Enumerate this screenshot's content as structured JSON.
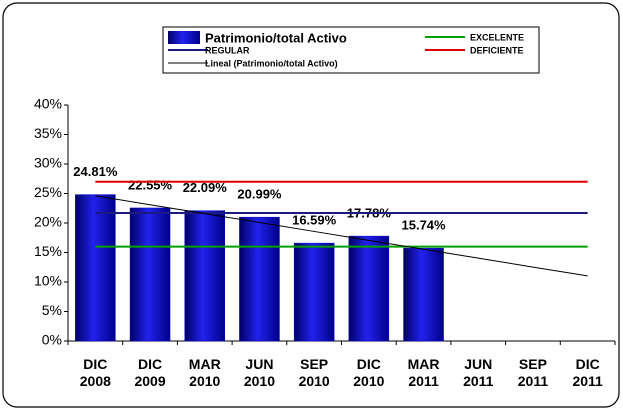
{
  "chart_data": {
    "type": "bar",
    "categories": [
      "DIC 2008",
      "DIC 2009",
      "MAR 2010",
      "JUN 2010",
      "SEP 2010",
      "DIC 2010",
      "MAR 2011",
      "JUN 2011",
      "SEP 2011",
      "DIC 2011"
    ],
    "series": [
      {
        "name": "Patrimonio/total Activo",
        "type": "bar",
        "color": "#0000cc",
        "values": [
          24.81,
          22.55,
          22.09,
          20.99,
          16.59,
          17.78,
          15.74,
          null,
          null,
          null
        ],
        "value_labels": [
          "24.81%",
          "22.55%",
          "22.09%",
          "20.99%",
          "16.59%",
          "17.78%",
          "15.74%",
          null,
          null,
          null
        ]
      },
      {
        "name": "EXCELENTE",
        "type": "line",
        "color": "#00a000",
        "values": [
          16,
          16,
          16,
          16,
          16,
          16,
          16,
          16,
          16,
          16
        ]
      },
      {
        "name": "REGULAR",
        "type": "line",
        "color": "#1a1a80",
        "values": [
          21.7,
          21.7,
          21.7,
          21.7,
          21.7,
          21.7,
          21.7,
          21.7,
          21.7,
          21.7
        ]
      },
      {
        "name": "DEFICIENTE",
        "type": "line",
        "color": "#e00000",
        "values": [
          27,
          27,
          27,
          27,
          27,
          27,
          27,
          27,
          27,
          27
        ]
      },
      {
        "name": "Lineal (Patrimonio/total Activo)",
        "type": "line",
        "color": "#000000",
        "values": [
          24.61,
          23.1,
          21.59,
          20.08,
          18.57,
          17.06,
          15.55,
          14.04,
          12.53,
          11.03
        ]
      }
    ],
    "ylim": [
      0,
      40
    ],
    "yticks": [
      {
        "value": 0,
        "label": "0%"
      },
      {
        "value": 5,
        "label": "5%"
      },
      {
        "value": 10,
        "label": "10%"
      },
      {
        "value": 15,
        "label": "15%"
      },
      {
        "value": 20,
        "label": "20%"
      },
      {
        "value": 25,
        "label": "25%"
      },
      {
        "value": 30,
        "label": "30%"
      },
      {
        "value": 35,
        "label": "35%"
      },
      {
        "value": 40,
        "label": "40%"
      }
    ]
  }
}
